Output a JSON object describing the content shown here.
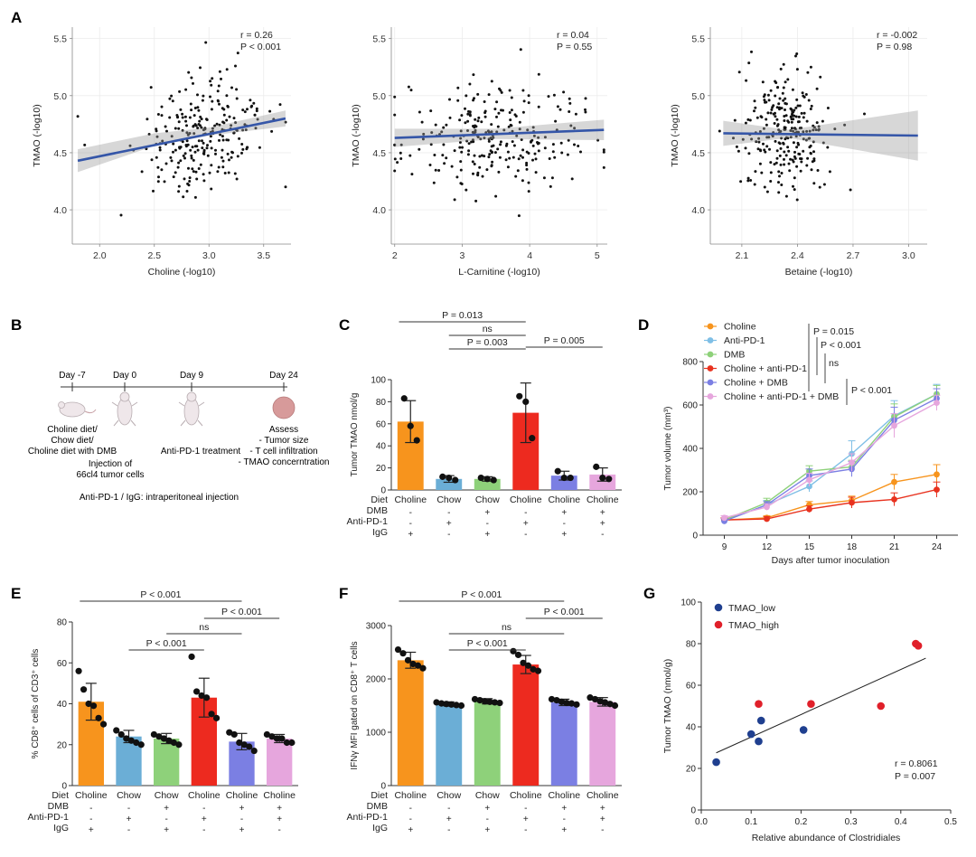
{
  "letters": {
    "a": "A",
    "b": "B",
    "c": "C",
    "d": "D",
    "e": "E",
    "f": "F",
    "g": "G"
  },
  "chart_data": [
    {
      "id": "A1",
      "type": "scatter",
      "xlabel": "Choline (-log10)",
      "ylabel": "TMAO (-log10)",
      "xlim": [
        1.75,
        3.75
      ],
      "ylim": [
        3.7,
        5.6
      ],
      "xticks": [
        2.0,
        2.5,
        3.0,
        3.5
      ],
      "xtick_labels": [
        "2.0",
        "2.5",
        "3.0",
        "3.5"
      ],
      "yticks": [
        4.0,
        4.5,
        5.0,
        5.5
      ],
      "ytick_labels": [
        "4.0",
        "4.5",
        "5.0",
        "5.5"
      ],
      "stat_r": "r = 0.26",
      "stat_p": "P < 0.001",
      "fit": {
        "x": [
          1.8,
          3.7
        ],
        "y": [
          4.43,
          4.8
        ]
      },
      "band": {
        "x": [
          1.8,
          2.5,
          3.0,
          3.7
        ],
        "upper": [
          4.53,
          4.67,
          4.72,
          4.87
        ],
        "lower": [
          4.33,
          4.56,
          4.65,
          4.73
        ]
      },
      "points": {
        "xmean": 2.95,
        "xsd": 0.3,
        "ymean": 4.67,
        "ysd": 0.25,
        "n": 260,
        "seed": 11,
        "slope": 0.19,
        "xmin": 1.8,
        "xmax": 3.7
      }
    },
    {
      "id": "A2",
      "type": "scatter",
      "xlabel": "L-Carnitine (-log10)",
      "ylabel": "TMAO (-log10)",
      "xlim": [
        1.95,
        5.15
      ],
      "ylim": [
        3.7,
        5.6
      ],
      "xticks": [
        2,
        3,
        4,
        5
      ],
      "xtick_labels": [
        "2",
        "3",
        "4",
        "5"
      ],
      "yticks": [
        4.0,
        4.5,
        5.0,
        5.5
      ],
      "ytick_labels": [
        "4.0",
        "4.5",
        "5.0",
        "5.5"
      ],
      "stat_r": "r = 0.04",
      "stat_p": "P = 0.55",
      "fit": {
        "x": [
          2.0,
          5.1
        ],
        "y": [
          4.63,
          4.7
        ]
      },
      "band": {
        "x": [
          2.0,
          3.5,
          5.1
        ],
        "upper": [
          4.71,
          4.71,
          4.79
        ],
        "lower": [
          4.55,
          4.62,
          4.61
        ]
      },
      "points": {
        "xmean": 3.5,
        "xsd": 0.7,
        "ymean": 4.67,
        "ysd": 0.25,
        "n": 260,
        "seed": 23,
        "slope": 0.02,
        "xmin": 2.0,
        "xmax": 5.1
      }
    },
    {
      "id": "A3",
      "type": "scatter",
      "xlabel": "Betaine (-log10)",
      "ylabel": "TMAO (-log10)",
      "xlim": [
        1.93,
        3.1
      ],
      "ylim": [
        3.7,
        5.6
      ],
      "xticks": [
        2.1,
        2.4,
        2.7,
        3.0
      ],
      "xtick_labels": [
        "2.1",
        "2.4",
        "2.7",
        "3.0"
      ],
      "yticks": [
        4.0,
        4.5,
        5.0,
        5.5
      ],
      "ytick_labels": [
        "4.0",
        "4.5",
        "5.0",
        "5.5"
      ],
      "stat_r": "r = -0.002",
      "stat_p": "P = 0.98",
      "fit": {
        "x": [
          2.0,
          3.05
        ],
        "y": [
          4.67,
          4.65
        ]
      },
      "band": {
        "x": [
          2.0,
          2.35,
          3.05
        ],
        "upper": [
          4.78,
          4.7,
          4.87
        ],
        "lower": [
          4.56,
          4.63,
          4.43
        ]
      },
      "points": {
        "xmean": 2.33,
        "xsd": 0.12,
        "ymean": 4.67,
        "ysd": 0.25,
        "n": 260,
        "seed": 37,
        "slope": 0.0,
        "xmin": 1.98,
        "xmax": 3.08
      }
    },
    {
      "id": "C",
      "type": "bar",
      "ylabel": "Tumor TMAO  nmol/g",
      "ylim": [
        0,
        100
      ],
      "yticks": [
        0,
        20,
        40,
        60,
        80,
        100
      ],
      "ytick_labels": [
        "0",
        "20",
        "40",
        "60",
        "80",
        "100"
      ],
      "categories": [
        "Choline",
        "Chow",
        "Chow",
        "Choline",
        "Choline",
        "Choline"
      ],
      "values": [
        62,
        10,
        10,
        70,
        13,
        14
      ],
      "errors": [
        19,
        3,
        2,
        27,
        4,
        6
      ],
      "dots": [
        [
          83,
          58,
          45
        ],
        [
          12,
          11,
          9
        ],
        [
          11,
          10,
          9
        ],
        [
          85,
          80,
          47
        ],
        [
          17,
          11,
          11
        ],
        [
          21,
          11,
          10
        ]
      ],
      "colors": [
        "#f7941d",
        "#6baed6",
        "#8ed17a",
        "#ed2a1f",
        "#7b7fe3",
        "#e6a6dd"
      ],
      "sig": [
        {
          "label": "P = 0.013",
          "from": 0,
          "to": 3
        },
        {
          "label": "ns",
          "from": 1,
          "to": 3
        },
        {
          "label": "P = 0.003",
          "from": 1,
          "to": 3
        },
        {
          "label": "P = 0.005",
          "from": 3,
          "to": 5
        }
      ],
      "table_labels": [
        "Diet",
        "DMB",
        "Anti-PD-1",
        "IgG"
      ],
      "table": [
        [
          "-",
          "-",
          "+",
          "-",
          "+",
          "+"
        ],
        [
          "-",
          "+",
          "-",
          "+",
          "-",
          "+"
        ],
        [
          "+",
          "-",
          "+",
          "-",
          "+",
          "-"
        ]
      ]
    },
    {
      "id": "D",
      "type": "line",
      "xlabel": "Days after tumor inoculation",
      "ylabel": "Tumor volume (mm³)",
      "x": [
        9,
        12,
        15,
        18,
        21,
        24
      ],
      "xlim": [
        7.5,
        25.5
      ],
      "ylim": [
        0,
        800
      ],
      "yticks": [
        0,
        200,
        400,
        600,
        800
      ],
      "ytick_labels": [
        "0",
        "200",
        "400",
        "600",
        "800"
      ],
      "xtick_labels": [
        "9",
        "12",
        "15",
        "18",
        "21",
        "24"
      ],
      "series": [
        {
          "name": "Choline",
          "color": "#f7941d",
          "values": [
            70,
            80,
            140,
            160,
            245,
            280
          ],
          "err": [
            10,
            10,
            15,
            20,
            35,
            45
          ]
        },
        {
          "name": "Anti-PD-1",
          "color": "#7fbfe6",
          "values": [
            65,
            140,
            225,
            375,
            550,
            650
          ],
          "err": [
            10,
            20,
            25,
            60,
            70,
            45
          ]
        },
        {
          "name": "DMB",
          "color": "#8ed17a",
          "values": [
            70,
            150,
            295,
            315,
            545,
            650
          ],
          "err": [
            10,
            20,
            25,
            30,
            60,
            40
          ]
        },
        {
          "name": "Choline + anti-PD-1",
          "color": "#e8321f",
          "values": [
            70,
            75,
            120,
            150,
            165,
            210
          ],
          "err": [
            10,
            10,
            15,
            25,
            30,
            35
          ]
        },
        {
          "name": "Choline + DMB",
          "color": "#7b7fe3",
          "values": [
            65,
            140,
            275,
            305,
            530,
            630
          ],
          "err": [
            10,
            15,
            30,
            35,
            60,
            45
          ]
        },
        {
          "name": "Choline + anti-PD-1 + DMB",
          "color": "#e6a6dd",
          "values": [
            80,
            130,
            255,
            335,
            505,
            610
          ],
          "err": [
            10,
            15,
            30,
            40,
            55,
            35
          ]
        }
      ],
      "sig": [
        "P = 0.015",
        "P < 0.001",
        "ns",
        "P < 0.001"
      ]
    },
    {
      "id": "E",
      "type": "bar",
      "ylabel": "% CD8⁺ cells of CD3⁺ cells",
      "ylim": [
        0,
        80
      ],
      "yticks": [
        0,
        20,
        40,
        60,
        80
      ],
      "ytick_labels": [
        "0",
        "20",
        "40",
        "60",
        "80"
      ],
      "categories": [
        "Choline",
        "Chow",
        "Chow",
        "Choline",
        "Choline",
        "Choline"
      ],
      "values": [
        41,
        24,
        23,
        43,
        21.5,
        23
      ],
      "errors": [
        9,
        3,
        2.5,
        9.5,
        4,
        2
      ],
      "dots": [
        [
          56,
          47,
          40,
          39,
          33,
          30
        ],
        [
          27,
          25,
          23,
          22,
          21,
          20
        ],
        [
          25,
          24,
          23,
          22,
          21,
          20
        ],
        [
          63,
          46,
          44,
          43,
          35,
          33
        ],
        [
          26,
          25,
          21,
          20,
          19,
          17
        ],
        [
          25,
          24,
          23,
          23,
          21,
          21
        ]
      ],
      "colors": [
        "#f7941d",
        "#6baed6",
        "#8ed17a",
        "#ed2a1f",
        "#7b7fe3",
        "#e6a6dd"
      ],
      "sig": [
        {
          "label": "P < 0.001",
          "from": 0,
          "to": 4
        },
        {
          "label": "P < 0.001",
          "from": 3,
          "to": 5
        },
        {
          "label": "ns",
          "from": 2,
          "to": 4
        },
        {
          "label": "P < 0.001",
          "from": 1,
          "to": 3
        }
      ],
      "table_labels": [
        "Diet",
        "DMB",
        "Anti-PD-1",
        "IgG"
      ],
      "table": [
        [
          "-",
          "-",
          "+",
          "-",
          "+",
          "+"
        ],
        [
          "-",
          "+",
          "-",
          "+",
          "-",
          "+"
        ],
        [
          "+",
          "-",
          "+",
          "-",
          "+",
          "-"
        ]
      ]
    },
    {
      "id": "F",
      "type": "bar",
      "ylabel": "IFNγ MFI gated on CD8⁺ T cells",
      "ylim": [
        0,
        3000
      ],
      "yticks": [
        0,
        1000,
        2000,
        3000
      ],
      "ytick_labels": [
        "0",
        "1000",
        "2000",
        "3000"
      ],
      "categories": [
        "Choline",
        "Chow",
        "Chow",
        "Choline",
        "Choline",
        "Choline"
      ],
      "values": [
        2350,
        1530,
        1580,
        2270,
        1560,
        1570
      ],
      "errors": [
        150,
        40,
        50,
        170,
        60,
        80
      ],
      "dots": [
        [
          2550,
          2480,
          2350,
          2280,
          2250,
          2200
        ],
        [
          1560,
          1540,
          1530,
          1520,
          1510,
          1500
        ],
        [
          1620,
          1600,
          1580,
          1570,
          1560,
          1550
        ],
        [
          2520,
          2450,
          2300,
          2250,
          2180,
          2150
        ],
        [
          1620,
          1600,
          1570,
          1550,
          1540,
          1520
        ],
        [
          1650,
          1620,
          1580,
          1560,
          1530,
          1500
        ]
      ],
      "colors": [
        "#f7941d",
        "#6baed6",
        "#8ed17a",
        "#ed2a1f",
        "#7b7fe3",
        "#e6a6dd"
      ],
      "sig": [
        {
          "label": "P < 0.001",
          "from": 0,
          "to": 4
        },
        {
          "label": "P < 0.001",
          "from": 3,
          "to": 5
        },
        {
          "label": "ns",
          "from": 1,
          "to": 4
        },
        {
          "label": "P < 0.001",
          "from": 1,
          "to": 3
        }
      ],
      "table_labels": [
        "Diet",
        "DMB",
        "Anti-PD-1",
        "IgG"
      ],
      "table": [
        [
          "-",
          "-",
          "+",
          "-",
          "+",
          "+"
        ],
        [
          "-",
          "+",
          "-",
          "+",
          "-",
          "+"
        ],
        [
          "+",
          "-",
          "+",
          "-",
          "+",
          "-"
        ]
      ]
    },
    {
      "id": "G",
      "type": "scatter",
      "xlabel": "Relative abundance of Clostridiales",
      "ylabel": "Tumor TMAO (nmol/g)",
      "xlim": [
        0,
        0.5
      ],
      "ylim": [
        0,
        100
      ],
      "xticks": [
        0,
        0.1,
        0.2,
        0.3,
        0.4,
        0.5
      ],
      "xtick_labels": [
        "0.0",
        "0.1",
        "0.2",
        "0.3",
        "0.4",
        "0.5"
      ],
      "yticks": [
        0,
        20,
        40,
        60,
        80,
        100
      ],
      "ytick_labels": [
        "0",
        "20",
        "40",
        "60",
        "80",
        "100"
      ],
      "series": [
        {
          "name": "TMAO_low",
          "color": "#1f3f8f",
          "x": [
            0.03,
            0.1,
            0.12,
            0.115,
            0.205
          ],
          "y": [
            23,
            36.5,
            43,
            33,
            38.5
          ]
        },
        {
          "name": "TMAO_high",
          "color": "#e0202a",
          "x": [
            0.115,
            0.22,
            0.36,
            0.43,
            0.435
          ],
          "y": [
            51,
            51,
            50,
            80,
            79
          ]
        }
      ],
      "fit": {
        "x": [
          0.03,
          0.45
        ],
        "y": [
          27.5,
          73
        ]
      },
      "stat_r": "r = 0.8061",
      "stat_p": "P = 0.007"
    }
  ],
  "panel_b": {
    "days": [
      "Day -7",
      "Day 0",
      "Day 9",
      "Day 24"
    ],
    "diet_text": [
      "Choline diet/",
      "Chow diet/",
      "Choline diet with DMB"
    ],
    "injection_text": [
      "Injection of",
      "66cl4 tumor cells"
    ],
    "treatment_text": "Anti-PD-1 treatment",
    "assess_text": [
      "Assess",
      "- Tumor size",
      "- T cell infiltration",
      "- TMAO concerntration"
    ],
    "footnote": "Anti-PD-1 / IgG: intraperitoneal injection"
  }
}
